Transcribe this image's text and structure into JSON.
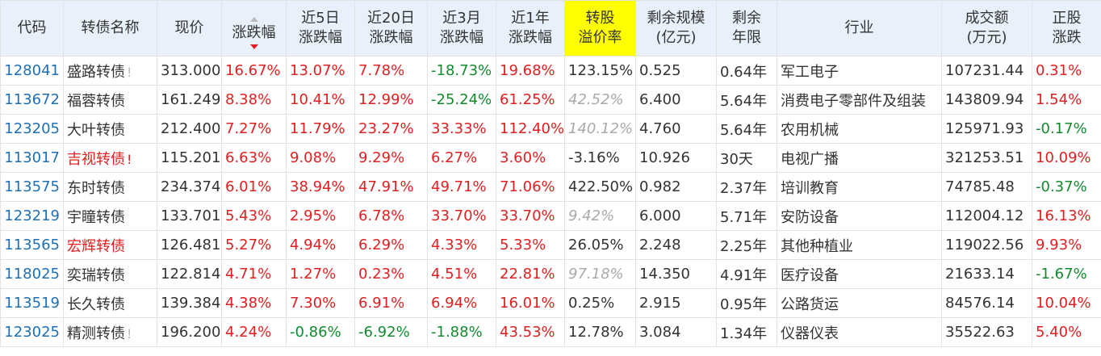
{
  "headers": [
    {
      "key": "code",
      "lines": [
        "代码"
      ]
    },
    {
      "key": "name",
      "lines": [
        "转债名称"
      ]
    },
    {
      "key": "price",
      "lines": [
        "现价"
      ]
    },
    {
      "key": "chg",
      "lines": [
        "涨跌幅"
      ],
      "sorted": "desc"
    },
    {
      "key": "chg5",
      "lines": [
        "近5日",
        "涨跌幅"
      ]
    },
    {
      "key": "chg20",
      "lines": [
        "近20日",
        "涨跌幅"
      ]
    },
    {
      "key": "chg3m",
      "lines": [
        "近3月",
        "涨跌幅"
      ]
    },
    {
      "key": "chg1y",
      "lines": [
        "近1年",
        "涨跌幅"
      ]
    },
    {
      "key": "premium",
      "lines": [
        "转股",
        "溢价率"
      ],
      "highlight": true
    },
    {
      "key": "scale",
      "lines": [
        "剩余规模",
        "(亿元)"
      ]
    },
    {
      "key": "years",
      "lines": [
        "剩余",
        "年限"
      ]
    },
    {
      "key": "industry",
      "lines": [
        "行业"
      ]
    },
    {
      "key": "volume",
      "lines": [
        "成交额",
        "(万元)"
      ]
    },
    {
      "key": "stock",
      "lines": [
        "正股",
        "涨跌"
      ]
    }
  ],
  "rows": [
    {
      "code": "128041",
      "name": "盛路转债",
      "warn": true,
      "name_red": false,
      "price": "313.000",
      "chg": "16.67%",
      "chg5": "13.07%",
      "chg20": "7.78%",
      "chg3m": "-18.73%",
      "chg1y": "19.68%",
      "premium": "123.15%",
      "premium_gray": false,
      "scale": "0.525",
      "years": "0.64年",
      "industry": "军工电子",
      "volume": "107231.44",
      "stock": "0.31%"
    },
    {
      "code": "113672",
      "name": "福蓉转债",
      "warn": false,
      "name_red": false,
      "price": "161.249",
      "chg": "8.38%",
      "chg5": "10.41%",
      "chg20": "12.99%",
      "chg3m": "-25.24%",
      "chg1y": "61.25%",
      "premium": "42.52%",
      "premium_gray": true,
      "scale": "6.400",
      "years": "5.64年",
      "industry": "消费电子零部件及组装",
      "volume": "143809.94",
      "stock": "1.54%"
    },
    {
      "code": "123205",
      "name": "大叶转债",
      "warn": false,
      "name_red": false,
      "price": "212.400",
      "chg": "7.27%",
      "chg5": "11.79%",
      "chg20": "23.27%",
      "chg3m": "33.33%",
      "chg1y": "112.40%",
      "premium": "140.12%",
      "premium_gray": true,
      "scale": "4.760",
      "years": "5.64年",
      "industry": "农用机械",
      "volume": "125971.93",
      "stock": "-0.17%"
    },
    {
      "code": "113017",
      "name": "吉视转债",
      "warn": true,
      "name_red": true,
      "price": "115.201",
      "chg": "6.63%",
      "chg5": "9.08%",
      "chg20": "9.29%",
      "chg3m": "6.27%",
      "chg1y": "3.60%",
      "premium": "-3.16%",
      "premium_gray": false,
      "scale": "10.926",
      "years": "30天",
      "industry": "电视广播",
      "volume": "321253.51",
      "stock": "10.09%"
    },
    {
      "code": "113575",
      "name": "东时转债",
      "warn": false,
      "name_red": false,
      "price": "234.374",
      "chg": "6.01%",
      "chg5": "38.94%",
      "chg20": "47.91%",
      "chg3m": "49.71%",
      "chg1y": "71.06%",
      "premium": "422.50%",
      "premium_gray": false,
      "scale": "0.982",
      "years": "2.37年",
      "industry": "培训教育",
      "volume": "74785.48",
      "stock": "-0.37%"
    },
    {
      "code": "123219",
      "name": "宇瞳转债",
      "warn": false,
      "name_red": false,
      "price": "133.701",
      "chg": "5.43%",
      "chg5": "2.95%",
      "chg20": "6.78%",
      "chg3m": "33.70%",
      "chg1y": "33.70%",
      "premium": "9.42%",
      "premium_gray": true,
      "scale": "6.000",
      "years": "5.71年",
      "industry": "安防设备",
      "volume": "112004.12",
      "stock": "16.13%"
    },
    {
      "code": "113565",
      "name": "宏辉转债",
      "warn": false,
      "name_red": true,
      "price": "126.481",
      "chg": "5.27%",
      "chg5": "4.94%",
      "chg20": "6.29%",
      "chg3m": "4.33%",
      "chg1y": "5.33%",
      "premium": "26.05%",
      "premium_gray": false,
      "scale": "2.248",
      "years": "2.25年",
      "industry": "其他种植业",
      "volume": "119022.56",
      "stock": "9.93%"
    },
    {
      "code": "118025",
      "name": "奕瑞转债",
      "warn": false,
      "name_red": false,
      "price": "122.814",
      "chg": "4.71%",
      "chg5": "1.27%",
      "chg20": "0.23%",
      "chg3m": "4.51%",
      "chg1y": "22.81%",
      "premium": "97.18%",
      "premium_gray": true,
      "scale": "14.350",
      "years": "4.91年",
      "industry": "医疗设备",
      "volume": "21633.14",
      "stock": "-1.67%"
    },
    {
      "code": "113519",
      "name": "长久转债",
      "warn": false,
      "name_red": false,
      "price": "139.384",
      "chg": "4.38%",
      "chg5": "7.30%",
      "chg20": "6.91%",
      "chg3m": "6.94%",
      "chg1y": "16.01%",
      "premium": "0.25%",
      "premium_gray": false,
      "scale": "2.915",
      "years": "0.95年",
      "industry": "公路货运",
      "volume": "84576.14",
      "stock": "10.04%"
    },
    {
      "code": "123025",
      "name": "精测转债",
      "warn": true,
      "name_red": false,
      "price": "196.200",
      "chg": "4.24%",
      "chg5": "-0.86%",
      "chg20": "-6.92%",
      "chg3m": "-1.88%",
      "chg1y": "43.53%",
      "premium": "12.78%",
      "premium_gray": false,
      "scale": "3.084",
      "years": "1.34年",
      "industry": "仪器仪表",
      "volume": "35522.63",
      "stock": "5.40%"
    }
  ],
  "warn_mark": "!",
  "colors": {
    "up": "#e02020",
    "down": "#138a2e",
    "header_bg": "#e8f1fb",
    "highlight": "#ffff00",
    "code": "#1f6fb5"
  }
}
